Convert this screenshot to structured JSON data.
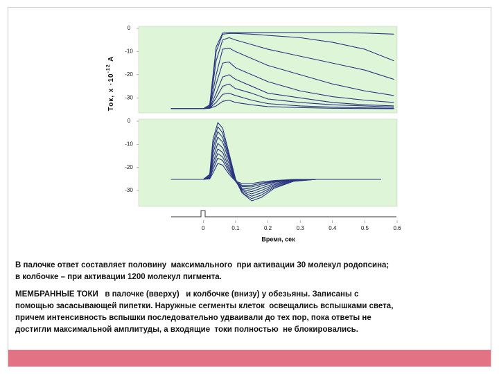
{
  "chart_data": [
    {
      "type": "line",
      "ylabel": {
        "text": "Ток, x ·10",
        "sup": "-12",
        "unit": " A"
      },
      "xlim": [
        -0.2,
        0.6
      ],
      "ylim": [
        -36.5,
        0.9
      ],
      "yticks": [
        0,
        -10,
        -20,
        -30
      ],
      "background": "#dff5d8",
      "x": [
        -0.1,
        -0.05,
        0,
        0.02,
        0.04,
        0.06,
        0.08,
        0.1,
        0.15,
        0.2,
        0.3,
        0.4,
        0.5,
        0.59
      ],
      "series": [
        {
          "color": "#2a3580",
          "values": [
            -34.7,
            -34.7,
            -34.7,
            -33,
            -8,
            -2,
            -1.8,
            -1.8,
            -1.8,
            -1.8,
            -1.8,
            -1.8,
            -2,
            -2.5
          ]
        },
        {
          "color": "#2a3580",
          "values": [
            -34.7,
            -34.7,
            -34.7,
            -33.5,
            -10,
            -2.5,
            -2.2,
            -2.2,
            -2.5,
            -3,
            -4,
            -6,
            -9,
            -14
          ]
        },
        {
          "color": "#2a3580",
          "values": [
            -34.7,
            -34.7,
            -34.7,
            -34,
            -14,
            -5,
            -4,
            -5,
            -7,
            -9,
            -12,
            -15,
            -18,
            -22
          ]
        },
        {
          "color": "#2a3580",
          "values": [
            -34.7,
            -34.7,
            -34.7,
            -34,
            -20,
            -9,
            -8.5,
            -10,
            -13,
            -16,
            -20,
            -24,
            -27,
            -29
          ]
        },
        {
          "color": "#2a3580",
          "values": [
            -34.7,
            -34.7,
            -34.7,
            -34,
            -24,
            -15,
            -14.5,
            -17,
            -20,
            -23,
            -27,
            -29.5,
            -31,
            -32
          ]
        },
        {
          "color": "#2a3580",
          "values": [
            -34.7,
            -34.7,
            -34.7,
            -34.2,
            -28,
            -21,
            -20,
            -22,
            -25,
            -28,
            -30,
            -32,
            -33,
            -33.5
          ]
        },
        {
          "color": "#2a3580",
          "values": [
            -34.7,
            -34.7,
            -34.7,
            -34.3,
            -30,
            -25,
            -24,
            -26,
            -28,
            -30.5,
            -32,
            -33,
            -33.5,
            -34
          ]
        },
        {
          "color": "#2a3580",
          "values": [
            -34.7,
            -34.7,
            -34.7,
            -34.4,
            -32,
            -28.5,
            -28,
            -29,
            -31,
            -32.5,
            -33.5,
            -34,
            -34.3,
            -34.5
          ]
        },
        {
          "color": "#2a3580",
          "values": [
            -34.7,
            -34.7,
            -34.7,
            -34.5,
            -33.5,
            -31.5,
            -31,
            -32,
            -33,
            -33.8,
            -34.2,
            -34.5,
            -34.6,
            -34.7
          ]
        }
      ]
    },
    {
      "type": "line",
      "xlabel": "Время, сек",
      "xlim": [
        -0.2,
        0.6
      ],
      "xticks": [
        0,
        0.1,
        0.2,
        0.3,
        0.4,
        0.5,
        0.6
      ],
      "ylim": [
        -36.9,
        0.9
      ],
      "yticks": [
        0,
        -10,
        -20,
        -30
      ],
      "background": "#dff5d8",
      "x": [
        -0.1,
        -0.05,
        0,
        0.02,
        0.03,
        0.045,
        0.06,
        0.08,
        0.1,
        0.12,
        0.15,
        0.18,
        0.22,
        0.28,
        0.35,
        0.45,
        0.55
      ],
      "series": [
        {
          "color": "#2a3580",
          "values": [
            -25.2,
            -25.2,
            -25.2,
            -23,
            -8,
            -0.6,
            -3,
            -14,
            -25,
            -31,
            -34.5,
            -33,
            -29,
            -26,
            -25.2,
            -25.2,
            -25.2
          ]
        },
        {
          "color": "#2a3580",
          "values": [
            -25.2,
            -25.2,
            -25.2,
            -23.5,
            -10,
            -2.4,
            -5,
            -15,
            -25.5,
            -31,
            -33.5,
            -32,
            -28.5,
            -26,
            -25.2,
            -25.2,
            -25.2
          ]
        },
        {
          "color": "#2a3580",
          "values": [
            -25.2,
            -25.2,
            -25.2,
            -24,
            -12,
            -4.5,
            -7,
            -16,
            -25.5,
            -30.5,
            -32.5,
            -31,
            -28,
            -25.8,
            -25.2,
            -25.2,
            -25.2
          ]
        },
        {
          "color": "#2a3580",
          "values": [
            -25.2,
            -25.2,
            -25.2,
            -24,
            -14,
            -6.9,
            -9,
            -17,
            -26,
            -30,
            -31.5,
            -30,
            -27.5,
            -25.6,
            -25.2,
            -25.2,
            -25.2
          ]
        },
        {
          "color": "#2a3580",
          "values": [
            -25.2,
            -25.2,
            -25.2,
            -24.3,
            -16,
            -9.6,
            -11.5,
            -18.5,
            -26,
            -29.5,
            -30.5,
            -29,
            -27,
            -25.5,
            -25.2,
            -25.2,
            -25.2
          ]
        },
        {
          "color": "#2a3580",
          "values": [
            -25.2,
            -25.2,
            -25.2,
            -24.5,
            -18,
            -12,
            -13.5,
            -20,
            -26,
            -29,
            -29.5,
            -28,
            -26.5,
            -25.4,
            -25.2,
            -25.2,
            -25.2
          ]
        },
        {
          "color": "#2a3580",
          "values": [
            -25.2,
            -25.2,
            -25.2,
            -24.6,
            -19.5,
            -14,
            -15.5,
            -21,
            -26,
            -28.3,
            -28.5,
            -27.3,
            -26.2,
            -25.3,
            -25.2,
            -25.2,
            -25.2
          ]
        },
        {
          "color": "#2a3580",
          "values": [
            -25.2,
            -25.2,
            -25.2,
            -24.8,
            -21,
            -16,
            -17,
            -22,
            -26,
            -27.8,
            -27.8,
            -26.8,
            -26,
            -25.3,
            -25.2,
            -25.2,
            -25.2
          ]
        },
        {
          "color": "#2a3580",
          "values": [
            -25.2,
            -25.2,
            -25.2,
            -25,
            -22.5,
            -18.3,
            -19,
            -23,
            -26,
            -27,
            -27,
            -26.3,
            -25.7,
            -25.2,
            -25.2,
            -25.2,
            -25.2
          ]
        }
      ]
    }
  ],
  "notes": [
    [
      "В палочке ответ составляет половину  максимального  при активации 30 молекул родопсина;",
      "в колбочке – при активации 1200 молекул пигмента."
    ],
    [
      "МЕМБРАННЫЕ ТОКИ   в палочке (вверху)   и колбочке (внизу) у обезьяны. Записаны с",
      "помощью засасывающей пипетки. Наружные сегменты клеток  освещались вспышками света,",
      "причем интенсивность вспышки последовательно удваивали до тех пор, пока ответы не",
      "достигли максимальной амплитуды, а входящие  токи полностью  не блокировались."
    ]
  ]
}
